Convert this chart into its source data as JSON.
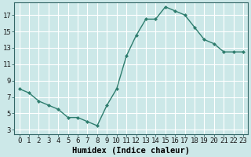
{
  "x": [
    0,
    1,
    2,
    3,
    4,
    5,
    6,
    7,
    8,
    9,
    10,
    11,
    12,
    13,
    14,
    15,
    16,
    17,
    18,
    19,
    20,
    21,
    22,
    23
  ],
  "y": [
    8.0,
    7.5,
    6.5,
    6.0,
    5.5,
    4.5,
    4.5,
    4.0,
    3.5,
    6.0,
    8.0,
    12.0,
    14.5,
    16.5,
    16.5,
    18.0,
    17.5,
    17.0,
    15.5,
    14.0,
    13.5,
    12.5,
    12.5,
    12.5
  ],
  "line_color": "#2e7d6e",
  "marker": "D",
  "marker_size": 2.0,
  "linewidth": 1.0,
  "background_color": "#cce8e8",
  "grid_color": "#ffffff",
  "xlabel": "Humidex (Indice chaleur)",
  "xlim": [
    -0.5,
    23.5
  ],
  "ylim": [
    2.5,
    18.5
  ],
  "yticks": [
    3,
    5,
    7,
    9,
    11,
    13,
    15,
    17
  ],
  "xtick_labels": [
    "0",
    "1",
    "2",
    "3",
    "4",
    "5",
    "6",
    "7",
    "8",
    "9",
    "10",
    "11",
    "12",
    "13",
    "14",
    "15",
    "16",
    "17",
    "18",
    "19",
    "20",
    "21",
    "22",
    "23"
  ],
  "xlabel_fontsize": 7.5,
  "tick_fontsize": 6.5
}
